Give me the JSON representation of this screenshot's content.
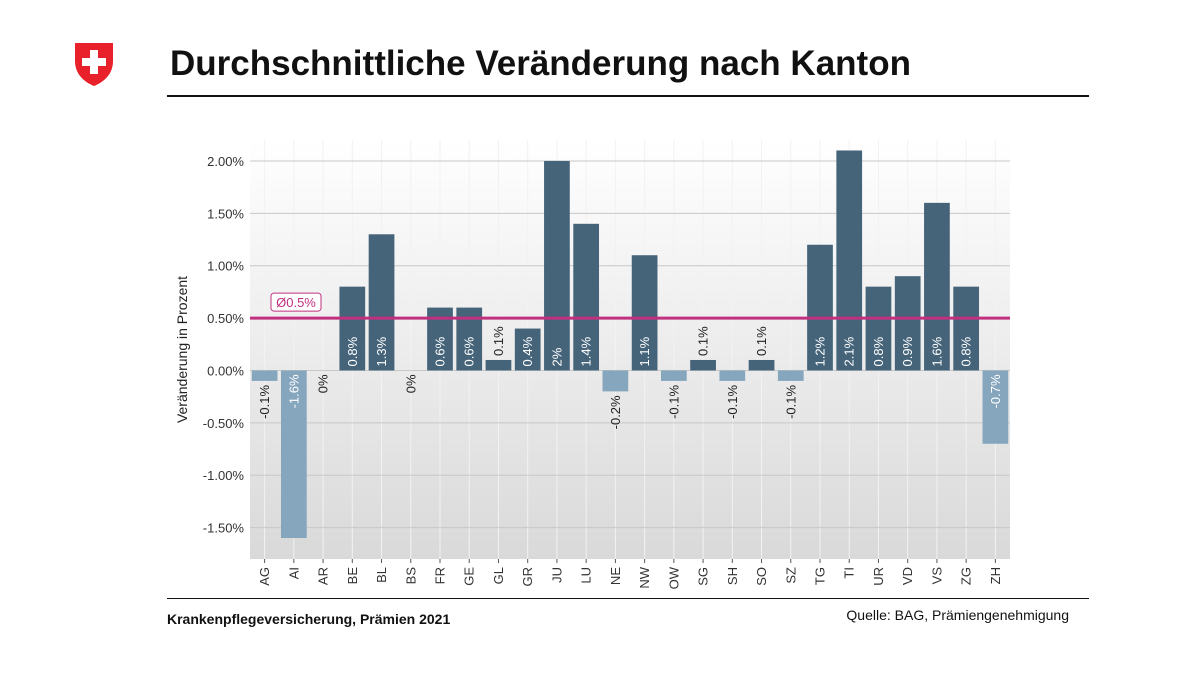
{
  "header": {
    "title": "Durchschnittliche Veränderung nach Kanton"
  },
  "footer": {
    "left": "Krankenpflegeversicherung, Prämien 2021",
    "right": "Quelle: BAG, Prämiengenehmigung"
  },
  "colors": {
    "positive_bar": "#45647a",
    "negative_bar": "#86a6be",
    "average_line": "#c0307e",
    "logo_red": "#e8212a"
  },
  "icons": {
    "logo": "swiss-cross-shield-icon"
  },
  "chart_data": {
    "type": "bar",
    "title": "",
    "xlabel": "",
    "ylabel": "Veränderung in Prozent",
    "categories": [
      "AG",
      "AI",
      "AR",
      "BE",
      "BL",
      "BS",
      "FR",
      "GE",
      "GL",
      "GR",
      "JU",
      "LU",
      "NE",
      "NW",
      "OW",
      "SG",
      "SH",
      "SO",
      "SZ",
      "TG",
      "TI",
      "UR",
      "VD",
      "VS",
      "ZG",
      "ZH"
    ],
    "values": [
      -0.1,
      -1.6,
      0,
      0.8,
      1.3,
      0,
      0.6,
      0.6,
      0.1,
      0.4,
      2,
      1.4,
      -0.2,
      1.1,
      -0.1,
      0.1,
      -0.1,
      0.1,
      -0.1,
      1.2,
      2.1,
      0.8,
      0.9,
      1.6,
      0.8,
      -0.7
    ],
    "data_labels": [
      "-0.1%",
      "-1.6%",
      "0%",
      "0.8%",
      "1.3%",
      "0%",
      "0.6%",
      "0.6%",
      "0.1%",
      "0.4%",
      "2%",
      "1.4%",
      "-0.2%",
      "1.1%",
      "-0.1%",
      "0.1%",
      "-0.1%",
      "0.1%",
      "-0.1%",
      "1.2%",
      "2.1%",
      "0.8%",
      "0.9%",
      "1.6%",
      "0.8%",
      "-0.7%"
    ],
    "yticks": [
      2.0,
      1.5,
      1.0,
      0.5,
      0.0,
      -0.5,
      -1.0,
      -1.5
    ],
    "ytick_labels": [
      "2.00%",
      "1.50%",
      "1.00%",
      "0.50%",
      "0.00%",
      "-0.50%",
      "-1.00%",
      "-1.50%"
    ],
    "ylim": [
      -1.8,
      2.2
    ],
    "average": {
      "value": 0.5,
      "label": "Ø0.5%"
    },
    "grid": true,
    "legend": "none"
  }
}
